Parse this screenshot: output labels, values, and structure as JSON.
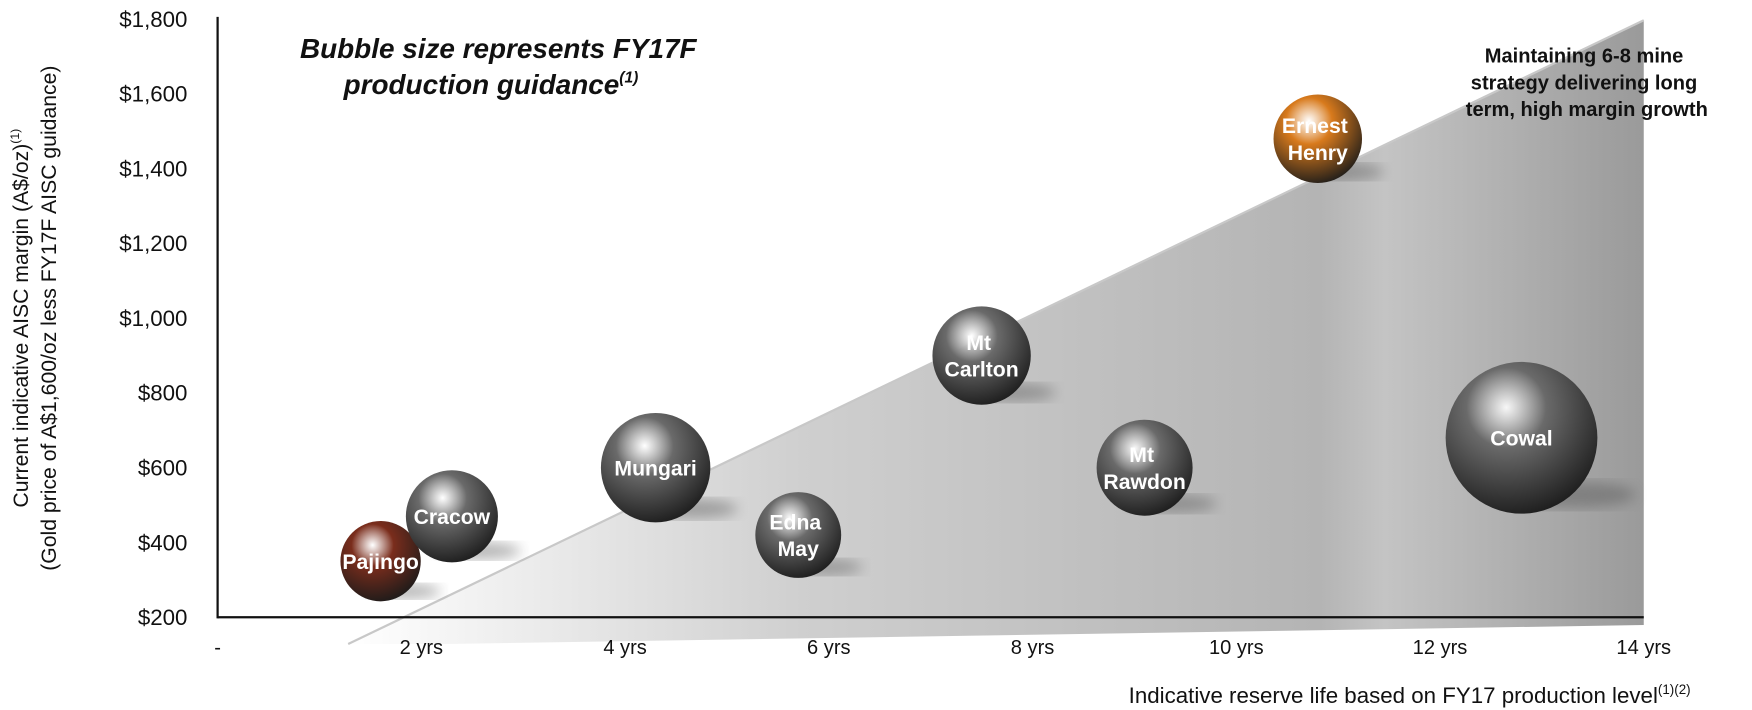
{
  "chart_data": {
    "type": "bubble",
    "title": "Bubble size represents FY17F production guidance",
    "title_note": "(1)",
    "annotation": "Maintaining 6-8 mine strategy delivering long term, high margin growth",
    "y_label": "Current indicative AISC margin (A$/oz)",
    "y_label_note": "(1)",
    "y_label_2": "(Gold price of A$1,600/oz less FY17F AISC guidance)",
    "x_label": "Indicative reserve life based on FY17 production level",
    "x_label_note": "(1)(2)",
    "labels": [
      "Pajingo",
      "Cracow",
      "Mungari",
      "Edna May",
      "Mt Carlton",
      "Mt Rawdon",
      "Ernest Henry",
      "Cowal"
    ],
    "x": [
      1.6,
      2.3,
      4.3,
      5.7,
      7.5,
      9.1,
      10.8,
      12.8
    ],
    "values": [
      350,
      470,
      600,
      420,
      900,
      600,
      1480,
      680
    ],
    "sizes": [
      70,
      92,
      130,
      80,
      105,
      100,
      85,
      250
    ],
    "colors": [
      "#7a2d1c",
      "#6a6a6a",
      "#6a6a6a",
      "#6a6a6a",
      "#6a6a6a",
      "#6a6a6a",
      "#d87a1c",
      "#6a6a6a"
    ],
    "xlim": [
      0,
      14
    ],
    "xticks": [
      {
        "value": 0,
        "label": "-"
      },
      {
        "value": 2,
        "label": "2 yrs"
      },
      {
        "value": 4,
        "label": "4 yrs"
      },
      {
        "value": 6,
        "label": "6 yrs"
      },
      {
        "value": 8,
        "label": "8 yrs"
      },
      {
        "value": 10,
        "label": "10 yrs"
      },
      {
        "value": 12,
        "label": "12 yrs"
      },
      {
        "value": 14,
        "label": "14 yrs"
      }
    ],
    "ylim": [
      200,
      1800
    ],
    "yticks": [
      {
        "value": 200,
        "label": "$200"
      },
      {
        "value": 400,
        "label": "$400"
      },
      {
        "value": 600,
        "label": "$600"
      },
      {
        "value": 800,
        "label": "$800"
      },
      {
        "value": 1000,
        "label": "$1,000"
      },
      {
        "value": 1200,
        "label": "$1,200"
      },
      {
        "value": 1400,
        "label": "$1,400"
      },
      {
        "value": 1600,
        "label": "$1,600"
      },
      {
        "value": 1800,
        "label": "$1,800"
      }
    ]
  }
}
